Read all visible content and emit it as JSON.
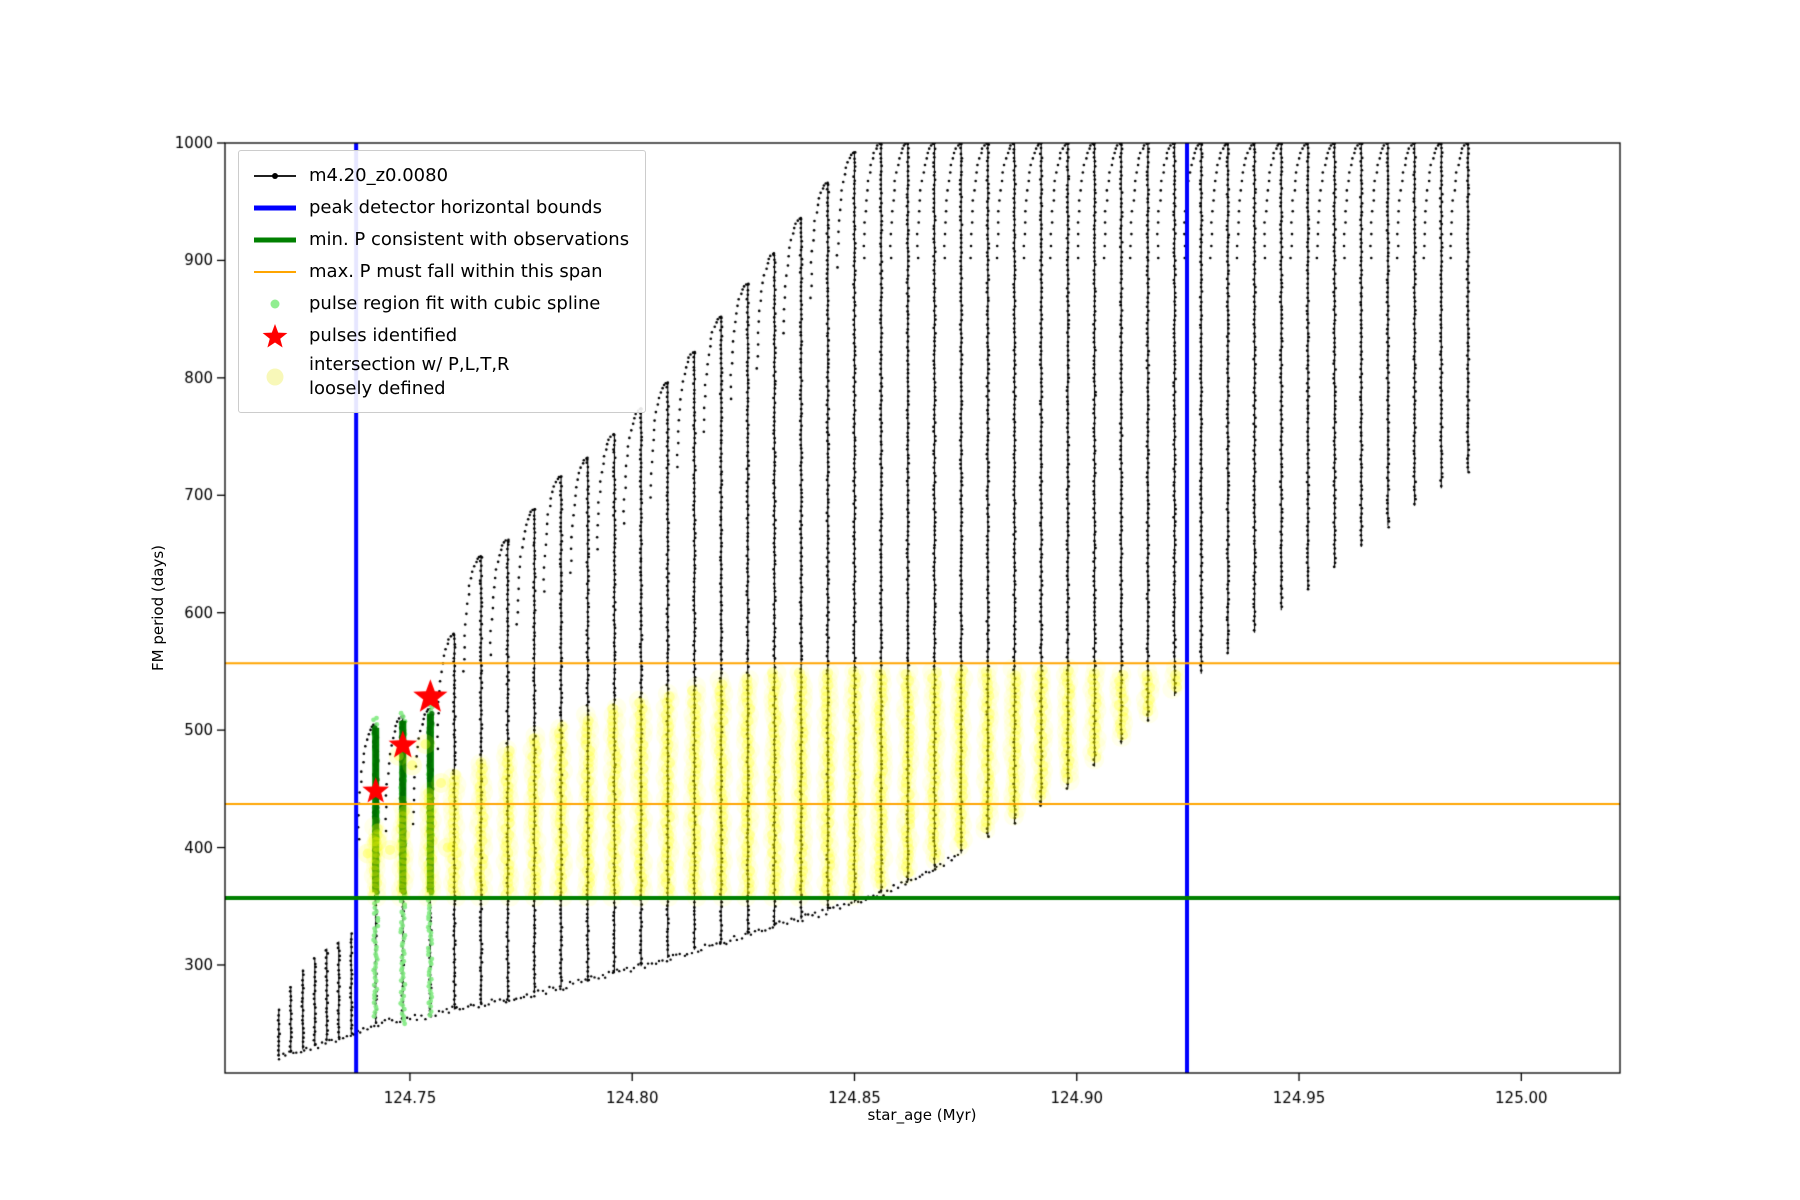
{
  "axes": {
    "xlabel": "star_age (Myr)",
    "ylabel": "FM period (days)"
  },
  "legend": {
    "entries": [
      {
        "label": "m4.20_z0.0080"
      },
      {
        "label": "peak detector horizontal bounds"
      },
      {
        "label": "min. P consistent with observations"
      },
      {
        "label": "max. P must fall within this span"
      },
      {
        "label": "pulse region fit with cubic spline"
      },
      {
        "label": "pulses identified"
      },
      {
        "label": "intersection w/ P,L,T,R\nloosely defined"
      }
    ]
  },
  "colors": {
    "series": "#000000",
    "blue": "#0000ff",
    "green": "#008000",
    "orange": "#ffa500",
    "light_green": "#90ee90",
    "red": "#ff0000",
    "yellow": "#ffff00",
    "yellow_pale": "#f7f7ad",
    "text": "#000000"
  },
  "chart_data": {
    "type": "scatter",
    "title": "",
    "xlabel": "star_age (Myr)",
    "ylabel": "FM period (days)",
    "series_label": "m4.20_z0.0080",
    "xlim": [
      124.7084,
      125.0222
    ],
    "ylim": [
      208,
      1000
    ],
    "xticks": [
      {
        "v": 124.75,
        "label": "124.75"
      },
      {
        "v": 124.8,
        "label": "124.80"
      },
      {
        "v": 124.85,
        "label": "124.85"
      },
      {
        "v": 124.9,
        "label": "124.90"
      },
      {
        "v": 124.95,
        "label": "124.95"
      },
      {
        "v": 125.0,
        "label": "125.00"
      }
    ],
    "yticks": [
      {
        "v": 300,
        "label": "300"
      },
      {
        "v": 400,
        "label": "400"
      },
      {
        "v": 500,
        "label": "500"
      },
      {
        "v": 600,
        "label": "600"
      },
      {
        "v": 700,
        "label": "700"
      },
      {
        "v": 800,
        "label": "800"
      },
      {
        "v": 900,
        "label": "900"
      },
      {
        "v": 1000,
        "label": "1000"
      }
    ],
    "spikes": [
      [
        124.7205,
        222,
        262
      ],
      [
        124.7232,
        225,
        282
      ],
      [
        124.7259,
        228,
        296
      ],
      [
        124.7286,
        231,
        306
      ],
      [
        124.7313,
        235,
        314
      ],
      [
        124.734,
        238,
        320
      ],
      [
        124.7368,
        242,
        327
      ],
      [
        124.7423,
        250,
        505
      ],
      [
        124.7484,
        253,
        512
      ],
      [
        124.7546,
        257,
        518
      ],
      [
        124.76,
        262,
        582
      ],
      [
        124.766,
        267,
        648
      ],
      [
        124.772,
        271,
        662
      ],
      [
        124.778,
        276,
        688
      ],
      [
        124.784,
        281,
        716
      ],
      [
        124.79,
        287,
        732
      ],
      [
        124.796,
        293,
        752
      ],
      [
        124.802,
        299,
        774
      ],
      [
        124.808,
        306,
        796
      ],
      [
        124.814,
        313,
        822
      ],
      [
        124.82,
        319,
        852
      ],
      [
        124.826,
        326,
        880
      ],
      [
        124.832,
        333,
        906
      ],
      [
        124.838,
        339,
        936
      ],
      [
        124.844,
        346,
        966
      ],
      [
        124.85,
        353,
        992
      ],
      [
        124.856,
        361,
        1000
      ],
      [
        124.862,
        371,
        1000
      ],
      [
        124.868,
        383,
        1000
      ],
      [
        124.874,
        395,
        1000
      ],
      [
        124.88,
        409,
        1000
      ],
      [
        124.886,
        421,
        1000
      ],
      [
        124.892,
        436,
        1000
      ],
      [
        124.898,
        451,
        1000
      ],
      [
        124.904,
        469,
        1000
      ],
      [
        124.91,
        488,
        1000
      ],
      [
        124.916,
        508,
        1000
      ],
      [
        124.922,
        529,
        1000
      ],
      [
        124.928,
        548,
        1000
      ],
      [
        124.934,
        565,
        1000
      ],
      [
        124.94,
        583,
        1000
      ],
      [
        124.946,
        602,
        1000
      ],
      [
        124.952,
        620,
        1000
      ],
      [
        124.958,
        638,
        1000
      ],
      [
        124.964,
        656,
        1000
      ],
      [
        124.97,
        674,
        1000
      ],
      [
        124.976,
        691,
        1000
      ],
      [
        124.982,
        706,
        1000
      ],
      [
        124.988,
        720,
        1000
      ]
    ],
    "blue_vlines": [
      124.7379,
      124.9248
    ],
    "green_hline": 357,
    "orange_hlines": [
      437,
      557
    ],
    "pulse_columns": [
      {
        "x": 124.7423,
        "light": [
          256,
          512
        ],
        "dark": [
          362,
          502
        ]
      },
      {
        "x": 124.7484,
        "light": [
          250,
          516
        ],
        "dark": [
          362,
          508
        ]
      },
      {
        "x": 124.7546,
        "light": [
          258,
          522
        ],
        "dark": [
          362,
          514
        ]
      }
    ],
    "stars": [
      [
        124.7423,
        448
      ],
      [
        124.7484,
        487
      ],
      [
        124.7546,
        528
      ]
    ],
    "star_sizes": [
      14,
      15,
      18
    ],
    "yellow": {
      "x_range": [
        124.742,
        124.9265
      ],
      "bottom_min": 358,
      "top_curve": [
        [
          124.74,
          415
        ],
        [
          124.76,
          465
        ],
        [
          124.78,
          502
        ],
        [
          124.8,
          527
        ],
        [
          124.82,
          545
        ],
        [
          124.835,
          553
        ],
        [
          124.927,
          553
        ]
      ],
      "extra_blobs": [
        [
          124.7405,
          395
        ],
        [
          124.7425,
          405
        ],
        [
          124.7455,
          398
        ],
        [
          124.7475,
          478
        ],
        [
          124.7505,
          470
        ],
        [
          124.7535,
          488
        ],
        [
          124.757,
          455
        ],
        [
          124.7585,
          400
        ]
      ]
    }
  }
}
